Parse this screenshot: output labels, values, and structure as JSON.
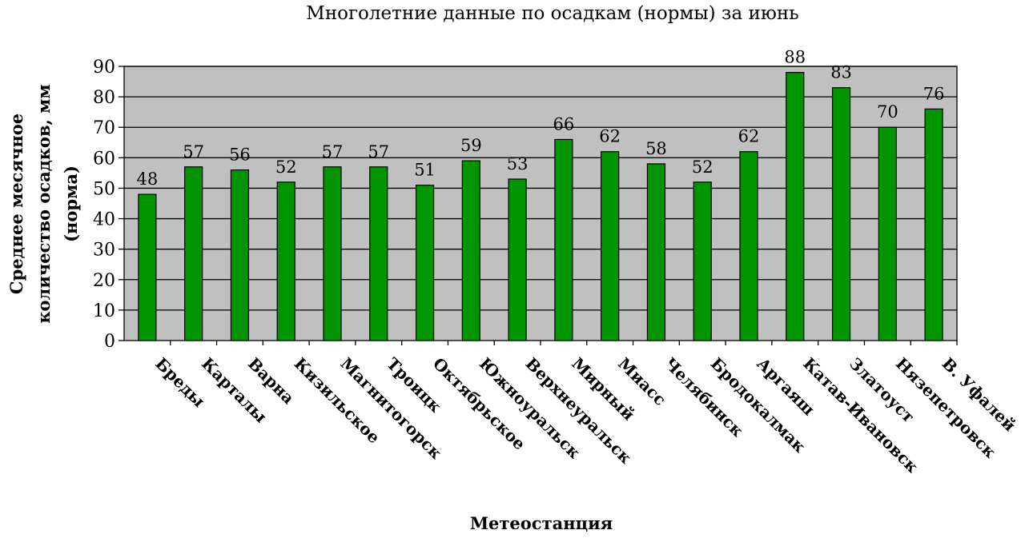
{
  "chart_data": {
    "type": "bar",
    "title": "Многолетние данные по осадкам (нормы) за июнь",
    "xlabel": "Метеостанция",
    "ylabel": "Среднее месячное количество осадков, мм (норма)",
    "ylabel_lines": [
      "Среднее месячное",
      "количество осадков, мм",
      "(норма)"
    ],
    "ylim": [
      0,
      90
    ],
    "yticks": [
      0,
      10,
      20,
      30,
      40,
      50,
      60,
      70,
      80,
      90
    ],
    "grid": true,
    "categories": [
      "Бреды",
      "Карталы",
      "Варна",
      "Кизильское",
      "Магнитогорск",
      "Троицк",
      "Октябрьское",
      "Южноуральск",
      "Верхнеуральск",
      "Мирный",
      "Миасс",
      "Челябинск",
      "Бродокалмак",
      "Аргаяш",
      "Катав-Ивановск",
      "Златоуст",
      "Нязепетровск",
      "В. Уфалей"
    ],
    "values": [
      48,
      57,
      56,
      52,
      57,
      57,
      51,
      59,
      53,
      66,
      62,
      58,
      52,
      62,
      88,
      83,
      70,
      76
    ],
    "colors": {
      "bar": "#009400",
      "plot_background": "#c0c0c0",
      "grid": "#000000"
    }
  }
}
